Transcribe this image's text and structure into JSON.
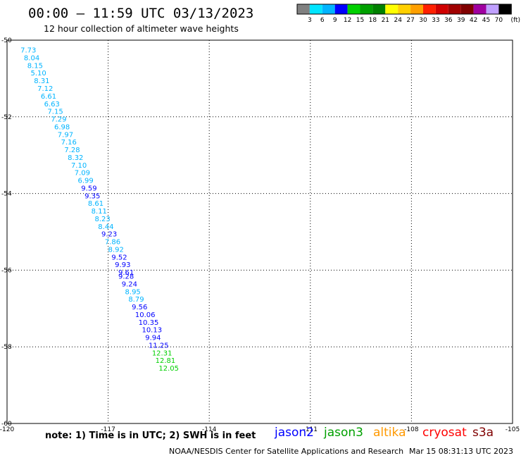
{
  "header": {
    "title": "00:00 – 11:59 UTC 03/13/2023",
    "subtitle": "12 hour collection of altimeter wave heights"
  },
  "colorbar": {
    "labels": [
      "3",
      "6",
      "9",
      "12",
      "15",
      "18",
      "21",
      "24",
      "27",
      "30",
      "33",
      "36",
      "39",
      "42",
      "45",
      "70"
    ],
    "unit": "(ft)",
    "colors": [
      "#808080",
      "#00e5ff",
      "#00b4ff",
      "#0000ff",
      "#00d000",
      "#00a000",
      "#008000",
      "#ffff00",
      "#ffd000",
      "#ffa000",
      "#ff2000",
      "#d00000",
      "#a00000",
      "#800000",
      "#a000a0",
      "#c0a0ff",
      "#000000"
    ]
  },
  "footer": {
    "note": "note: 1) Time is in UTC; 2) SWH is in feet",
    "satellites": [
      {
        "name": "jason2",
        "color": "#0000ff"
      },
      {
        "name": "jason3",
        "color": "#00a000"
      },
      {
        "name": "altika",
        "color": "#ff9900"
      },
      {
        "name": "cryosat",
        "color": "#ff0000"
      },
      {
        "name": "s3a",
        "color": "#800000"
      }
    ],
    "credit": "NOAA/NESDIS Center for Satellite Applications and Research",
    "timestamp": "Mar 15 08:31:13 UTC 2023"
  },
  "chart_data": {
    "type": "scatter",
    "title": "12 hour collection of altimeter wave heights",
    "xlim": [
      -120,
      -105
    ],
    "ylim": [
      -60,
      -50
    ],
    "x_ticks": [
      "-120",
      "-117",
      "-114",
      "-111",
      "-108",
      "-105"
    ],
    "y_ticks": [
      "-50",
      "-52",
      "-54",
      "-56",
      "-58",
      "-60"
    ],
    "grid": true,
    "western_track_values": [
      {
        "lon": -119.6,
        "lat": -50.25,
        "v": "7.73",
        "c": "#00b4ff"
      },
      {
        "lon": -119.5,
        "lat": -50.45,
        "v": "8.04",
        "c": "#00b4ff"
      },
      {
        "lon": -119.4,
        "lat": -50.65,
        "v": "8.15",
        "c": "#00b4ff"
      },
      {
        "lon": -119.3,
        "lat": -50.85,
        "v": "5.10",
        "c": "#00b4ff"
      },
      {
        "lon": -119.2,
        "lat": -51.05,
        "v": "8.31",
        "c": "#00b4ff"
      },
      {
        "lon": -119.1,
        "lat": -51.25,
        "v": "7.12",
        "c": "#00b4ff"
      },
      {
        "lon": -119.0,
        "lat": -51.45,
        "v": "6.61",
        "c": "#00b4ff"
      },
      {
        "lon": -118.9,
        "lat": -51.65,
        "v": "6.63",
        "c": "#00b4ff"
      },
      {
        "lon": -118.8,
        "lat": -51.85,
        "v": "7.15",
        "c": "#00b4ff"
      },
      {
        "lon": -118.7,
        "lat": -52.05,
        "v": "7.29",
        "c": "#00b4ff"
      },
      {
        "lon": -118.6,
        "lat": -52.25,
        "v": "6.98",
        "c": "#00b4ff"
      },
      {
        "lon": -118.5,
        "lat": -52.45,
        "v": "7.97",
        "c": "#00b4ff"
      },
      {
        "lon": -118.4,
        "lat": -52.65,
        "v": "7.16",
        "c": "#00b4ff"
      },
      {
        "lon": -118.3,
        "lat": -52.85,
        "v": "7.28",
        "c": "#00b4ff"
      },
      {
        "lon": -118.2,
        "lat": -53.05,
        "v": "8.32",
        "c": "#00b4ff"
      },
      {
        "lon": -118.1,
        "lat": -53.25,
        "v": "7.10",
        "c": "#00b4ff"
      },
      {
        "lon": -118.0,
        "lat": -53.45,
        "v": "7.09",
        "c": "#00b4ff"
      },
      {
        "lon": -117.9,
        "lat": -53.65,
        "v": "6.99",
        "c": "#00b4ff"
      },
      {
        "lon": -117.8,
        "lat": -53.85,
        "v": "9.59",
        "c": "#0000ff"
      },
      {
        "lon": -117.7,
        "lat": -54.05,
        "v": "9.35",
        "c": "#0000ff"
      },
      {
        "lon": -117.6,
        "lat": -54.25,
        "v": "8.61",
        "c": "#00b4ff"
      },
      {
        "lon": -117.5,
        "lat": -54.45,
        "v": "8.11",
        "c": "#00b4ff"
      },
      {
        "lon": -117.4,
        "lat": -54.65,
        "v": "8.23",
        "c": "#00b4ff"
      },
      {
        "lon": -117.3,
        "lat": -54.85,
        "v": "8.44",
        "c": "#00b4ff"
      },
      {
        "lon": -117.2,
        "lat": -55.05,
        "v": "9.23",
        "c": "#0000ff"
      },
      {
        "lon": -117.1,
        "lat": -55.25,
        "v": "7.86",
        "c": "#00b4ff"
      },
      {
        "lon": -117.0,
        "lat": -55.45,
        "v": "8.92",
        "c": "#00b4ff"
      },
      {
        "lon": -116.9,
        "lat": -55.65,
        "v": "9.52",
        "c": "#0000ff"
      },
      {
        "lon": -116.8,
        "lat": -55.85,
        "v": "9.93",
        "c": "#0000ff"
      },
      {
        "lon": -116.7,
        "lat": -56.05,
        "v": "9.61",
        "c": "#0000ff"
      },
      {
        "lon": -116.7,
        "lat": -56.15,
        "v": "9.28",
        "c": "#0000ff"
      },
      {
        "lon": -116.6,
        "lat": -56.35,
        "v": "9.24",
        "c": "#0000ff"
      },
      {
        "lon": -116.5,
        "lat": -56.55,
        "v": "8.95",
        "c": "#00b4ff"
      },
      {
        "lon": -116.4,
        "lat": -56.75,
        "v": "8.79",
        "c": "#00b4ff"
      },
      {
        "lon": -116.3,
        "lat": -56.95,
        "v": "9.56",
        "c": "#0000ff"
      },
      {
        "lon": -116.2,
        "lat": -57.15,
        "v": "10.06",
        "c": "#0000ff"
      },
      {
        "lon": -116.1,
        "lat": -57.35,
        "v": "10.35",
        "c": "#0000ff"
      },
      {
        "lon": -116.0,
        "lat": -57.55,
        "v": "10.13",
        "c": "#0000ff"
      },
      {
        "lon": -115.9,
        "lat": -57.75,
        "v": "9.94",
        "c": "#0000ff"
      },
      {
        "lon": -115.8,
        "lat": -57.95,
        "v": "11.25",
        "c": "#0000ff"
      },
      {
        "lon": -115.7,
        "lat": -58.15,
        "v": "12.31",
        "c": "#00d000"
      },
      {
        "lon": -115.6,
        "lat": -58.35,
        "v": "12.81",
        "c": "#00d000"
      },
      {
        "lon": -115.5,
        "lat": -58.55,
        "v": "12.05",
        "c": "#00d000"
      }
    ]
  }
}
